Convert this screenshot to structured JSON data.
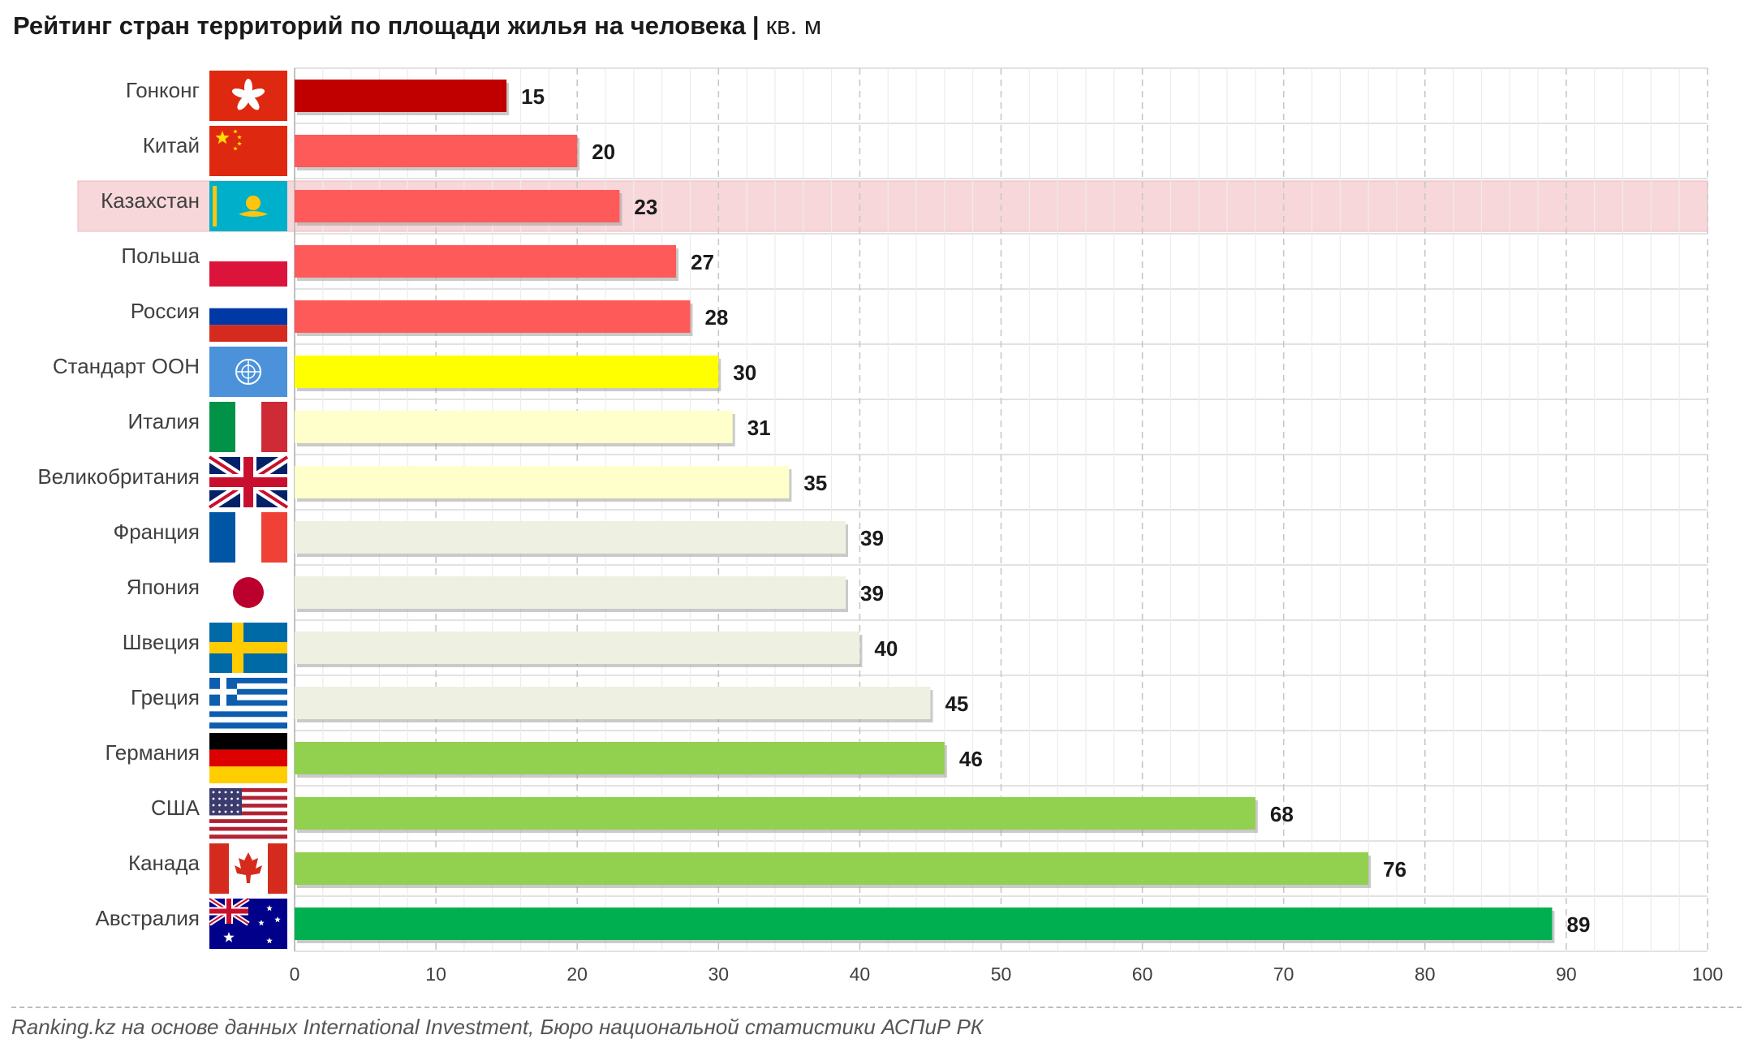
{
  "title": {
    "main": "Рейтинг стран территорий по площади жилья на человека",
    "separator": "|",
    "unit": "кв. м"
  },
  "source": "Ranking.kz на основе данных International Investment, Бюро национальной статистики АСПиР РК",
  "chart_data": {
    "type": "bar",
    "orientation": "horizontal",
    "xlim": [
      0,
      100
    ],
    "x_ticks": [
      0,
      10,
      20,
      30,
      40,
      50,
      60,
      70,
      80,
      90,
      100
    ],
    "grid": true,
    "highlight_category": "Казахстан",
    "highlight_color": "#f8d7da",
    "categories": [
      "Гонконг",
      "Китай",
      "Казахстан",
      "Польша",
      "Россия",
      "Стандарт ООН",
      "Италия",
      "Великобритания",
      "Франция",
      "Япония",
      "Швеция",
      "Греция",
      "Германия",
      "США",
      "Канада",
      "Австралия"
    ],
    "values": [
      15,
      20,
      23,
      27,
      28,
      30,
      31,
      35,
      39,
      39,
      40,
      45,
      46,
      68,
      76,
      89
    ],
    "colors": [
      "#c00000",
      "#ff5a5a",
      "#ff5a5a",
      "#ff5a5a",
      "#ff5a5a",
      "#ffff00",
      "#ffffcc",
      "#ffffcc",
      "#eef0e2",
      "#eef0e2",
      "#eef0e2",
      "#eef0e2",
      "#92d050",
      "#92d050",
      "#92d050",
      "#00b050"
    ],
    "flag_icons": [
      "hong-kong-flag-icon",
      "china-flag-icon",
      "kazakhstan-flag-icon",
      "poland-flag-icon",
      "russia-flag-icon",
      "un-flag-icon",
      "italy-flag-icon",
      "uk-flag-icon",
      "france-flag-icon",
      "japan-flag-icon",
      "sweden-flag-icon",
      "greece-flag-icon",
      "germany-flag-icon",
      "usa-flag-icon",
      "canada-flag-icon",
      "australia-flag-icon"
    ]
  }
}
